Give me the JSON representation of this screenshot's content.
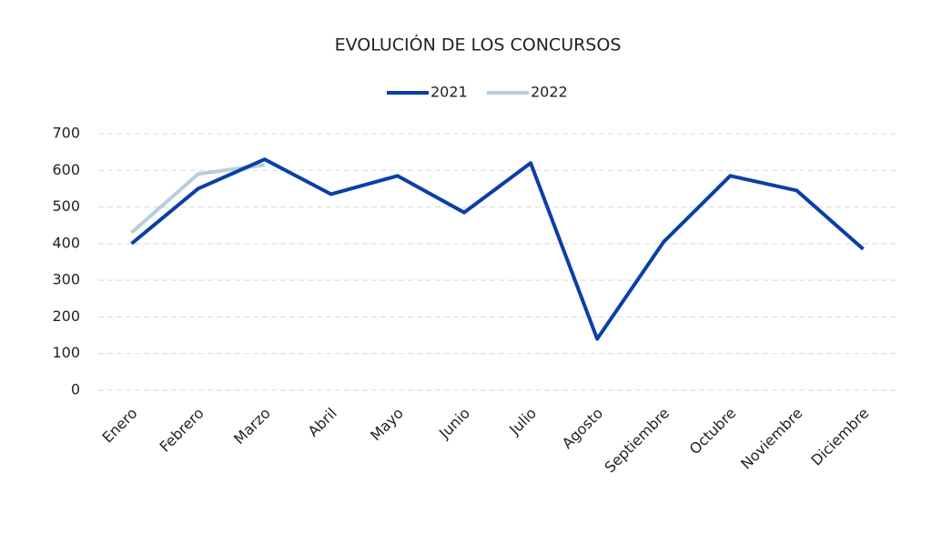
{
  "chart_data": {
    "type": "line",
    "title": "EVOLUCIÓN DE LOS CONCURSOS",
    "categories": [
      "Enero",
      "Febrero",
      "Marzo",
      "Abril",
      "Mayo",
      "Junio",
      "Julio",
      "Agosto",
      "Septiembre",
      "Octubre",
      "Noviembre",
      "Diciembre"
    ],
    "series": [
      {
        "name": "2021",
        "color": "#0a3fa8",
        "values": [
          400,
          550,
          630,
          535,
          585,
          485,
          620,
          140,
          405,
          585,
          545,
          385
        ]
      },
      {
        "name": "2022",
        "color": "#b7cde0",
        "values": [
          430,
          590,
          615,
          null,
          null,
          null,
          null,
          null,
          null,
          null,
          null,
          null
        ]
      }
    ],
    "ylim": [
      0,
      700
    ],
    "yticks": [
      0,
      100,
      200,
      300,
      400,
      500,
      600,
      700
    ],
    "grid": true,
    "legend": "top"
  }
}
